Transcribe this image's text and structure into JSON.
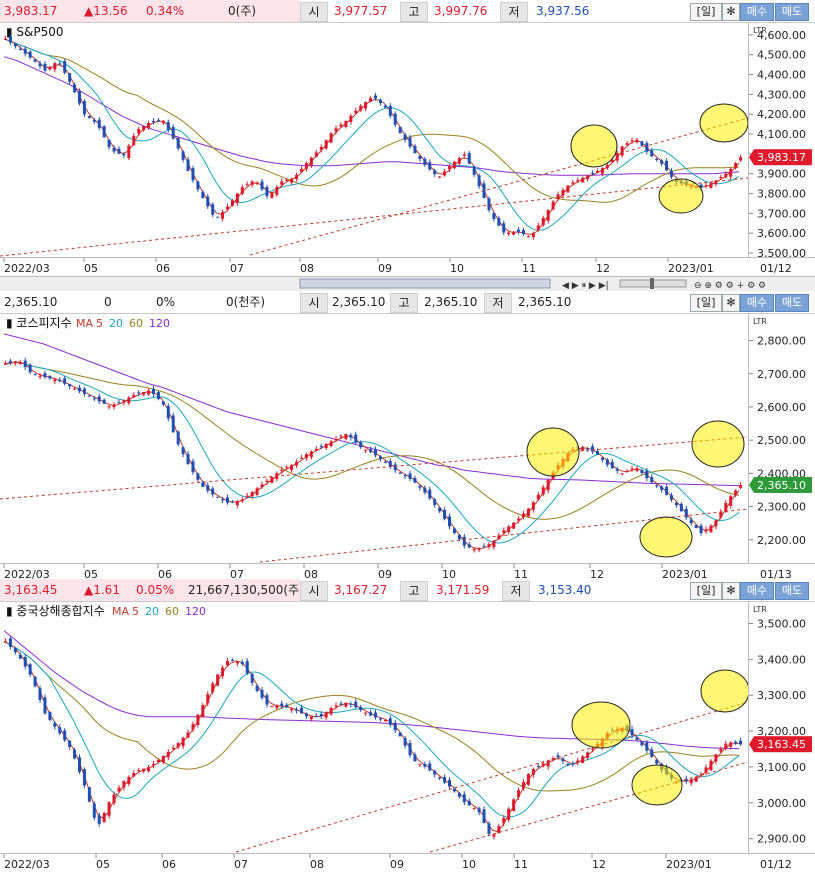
{
  "panels": [
    {
      "quote": {
        "last": "3,983.17",
        "change": "▲13.56",
        "pct": "0.34%",
        "volume": "0(주)",
        "open_lbl": "시",
        "open": "3,977.57",
        "high_lbl": "고",
        "high": "3,997.76",
        "low_lbl": "저",
        "low": "3,937.56",
        "period": "일",
        "buy": "매수",
        "sell": "매도"
      },
      "title": "S&P500",
      "ma_labels": [],
      "price_chip": "3,983.17",
      "chip_color": "#e0192c"
    },
    {
      "quote": {
        "last": "2,365.10",
        "change": "0",
        "pct": "0%",
        "volume": "0(천주)",
        "open_lbl": "시",
        "open": "2,365.10",
        "high_lbl": "고",
        "high": "2,365.10",
        "low_lbl": "저",
        "low": "2,365.10",
        "period": "일",
        "buy": "매수",
        "sell": "매도"
      },
      "title": "코스피지수",
      "ma_labels": [
        "MA",
        "5",
        "20",
        "60",
        "120"
      ],
      "price_chip": "2,365.10",
      "chip_color": "#2e9a3a"
    },
    {
      "quote": {
        "last": "3,163.45",
        "change": "▲1.61",
        "pct": "0.05%",
        "volume": "21,667,130,500(주)",
        "open_lbl": "시",
        "open": "3,167.27",
        "high_lbl": "고",
        "high": "3,171.59",
        "low_lbl": "저",
        "low": "3,153.40",
        "period": "일",
        "buy": "매수",
        "sell": "매도"
      },
      "title": "중국상해종합지수",
      "ma_labels": [
        "MA",
        "5",
        "20",
        "60",
        "120"
      ],
      "price_chip": "3,163.45",
      "chip_color": "#e0192c"
    }
  ],
  "colors": {
    "up": "#e0192c",
    "down": "#1f4fb5",
    "ma5": "#c0392b",
    "ma20": "#1aa5c4",
    "ma60": "#9a8020",
    "ma120": "#8a2bd1",
    "highlight": "#ffee00",
    "trend": "#c0392b"
  },
  "chart_data": [
    {
      "type": "candlestick",
      "title": "S&P500",
      "x_ticks": [
        "2022/03",
        "05",
        "06",
        "07",
        "08",
        "09",
        "10",
        "11",
        "12",
        "2023/01"
      ],
      "x_right_label": "01/12",
      "y_ticks": [
        "4,600.00",
        "4,500.00",
        "4,400.00",
        "4,300.00",
        "4,200.00",
        "4,100.00",
        "4,000.00",
        "3,900.00",
        "3,800.00",
        "3,700.00",
        "3,600.00",
        "3,500.00"
      ],
      "ylim": [
        3480,
        4660
      ],
      "close": [
        4580,
        4530,
        4480,
        4420,
        4470,
        4350,
        4200,
        4150,
        4020,
        3990,
        4120,
        4160,
        4170,
        4050,
        3900,
        3780,
        3670,
        3740,
        3830,
        3870,
        3780,
        3860,
        3880,
        3960,
        4030,
        4120,
        4170,
        4240,
        4290,
        4230,
        4110,
        4020,
        3940,
        3880,
        3950,
        4000,
        3850,
        3690,
        3600,
        3610,
        3580,
        3680,
        3790,
        3850,
        3880,
        3910,
        3950,
        4040,
        4080,
        4000,
        3950,
        3860,
        3840,
        3830,
        3860,
        3905,
        3983
      ],
      "ma120": [
        4490,
        4470,
        4440,
        4410,
        4380,
        4350,
        4310,
        4270,
        4230,
        4190,
        4160,
        4130,
        4110,
        4090,
        4070,
        4050,
        4030,
        4010,
        3990,
        3975,
        3960,
        3950,
        3945,
        3940,
        3940,
        3940,
        3945,
        3950,
        3955,
        3960,
        3960,
        3955,
        3950,
        3945,
        3940,
        3935,
        3930,
        3920,
        3910,
        3905,
        3900,
        3895,
        3893,
        3892,
        3892,
        3893,
        3895,
        3898,
        3900,
        3900,
        3900,
        3900,
        3900,
        3900,
        3900,
        3905,
        3910
      ],
      "annotations": [
        "yellow ellipse highlights",
        "dashed trend channel"
      ]
    },
    {
      "type": "candlestick",
      "title": "코스피지수",
      "x_ticks": [
        "2022/03",
        "05",
        "06",
        "07",
        "08",
        "09",
        "10",
        "11",
        "12",
        "2023/01"
      ],
      "x_right_label": "01/13",
      "y_ticks": [
        "2,800.00",
        "2,700.00",
        "2,600.00",
        "2,500.00",
        "2,400.00",
        "2,300.00",
        "2,200.00"
      ],
      "ylim": [
        2130,
        2880
      ],
      "close": [
        2730,
        2740,
        2700,
        2690,
        2680,
        2660,
        2640,
        2620,
        2600,
        2620,
        2640,
        2650,
        2610,
        2500,
        2420,
        2360,
        2330,
        2310,
        2320,
        2350,
        2380,
        2410,
        2430,
        2460,
        2480,
        2500,
        2520,
        2480,
        2460,
        2430,
        2400,
        2380,
        2340,
        2290,
        2230,
        2180,
        2170,
        2190,
        2230,
        2260,
        2300,
        2360,
        2420,
        2470,
        2480,
        2460,
        2420,
        2400,
        2420,
        2380,
        2350,
        2310,
        2260,
        2220,
        2250,
        2320,
        2365
      ],
      "ma120": [
        2820,
        2810,
        2800,
        2790,
        2775,
        2760,
        2745,
        2730,
        2715,
        2700,
        2685,
        2670,
        2660,
        2645,
        2630,
        2615,
        2600,
        2585,
        2575,
        2565,
        2555,
        2545,
        2535,
        2525,
        2515,
        2505,
        2495,
        2485,
        2475,
        2465,
        2455,
        2445,
        2435,
        2425,
        2420,
        2410,
        2405,
        2400,
        2395,
        2390,
        2385,
        2383,
        2382,
        2381,
        2380,
        2378,
        2376,
        2374,
        2372,
        2370,
        2369,
        2368,
        2367,
        2366,
        2365,
        2364,
        2363
      ],
      "annotations": [
        "yellow ellipse highlights",
        "dashed trend channel"
      ]
    },
    {
      "type": "candlestick",
      "title": "중국상해종합지수",
      "x_ticks": [
        "2022/03",
        "05",
        "06",
        "07",
        "08",
        "09",
        "10",
        "11",
        "12",
        "2023/01"
      ],
      "x_right_label": "01/12",
      "y_ticks": [
        "3,500.00",
        "3,400.00",
        "3,300.00",
        "3,200.00",
        "3,100.00",
        "3,000.00",
        "2,900.00"
      ],
      "ylim": [
        2860,
        3560
      ],
      "close": [
        3450,
        3410,
        3350,
        3250,
        3200,
        3150,
        3050,
        2930,
        3010,
        3060,
        3090,
        3100,
        3130,
        3160,
        3200,
        3270,
        3350,
        3400,
        3390,
        3320,
        3270,
        3270,
        3260,
        3240,
        3240,
        3270,
        3280,
        3260,
        3240,
        3230,
        3190,
        3120,
        3100,
        3070,
        3040,
        3000,
        2980,
        2900,
        2960,
        3030,
        3090,
        3110,
        3130,
        3100,
        3130,
        3160,
        3200,
        3210,
        3180,
        3140,
        3090,
        3060,
        3060,
        3080,
        3130,
        3170,
        3163
      ],
      "ma120": [
        3480,
        3450,
        3420,
        3390,
        3360,
        3335,
        3310,
        3290,
        3270,
        3255,
        3245,
        3240,
        3240,
        3240,
        3240,
        3240,
        3238,
        3236,
        3235,
        3233,
        3232,
        3231,
        3230,
        3229,
        3228,
        3227,
        3226,
        3225,
        3224,
        3222,
        3220,
        3217,
        3214,
        3210,
        3206,
        3202,
        3198,
        3194,
        3190,
        3186,
        3183,
        3181,
        3180,
        3179,
        3178,
        3177,
        3176,
        3175,
        3173,
        3170,
        3166,
        3162,
        3158,
        3155,
        3153,
        3152,
        3151
      ],
      "annotations": [
        "yellow ellipse highlights",
        "dashed trend channel"
      ]
    }
  ]
}
